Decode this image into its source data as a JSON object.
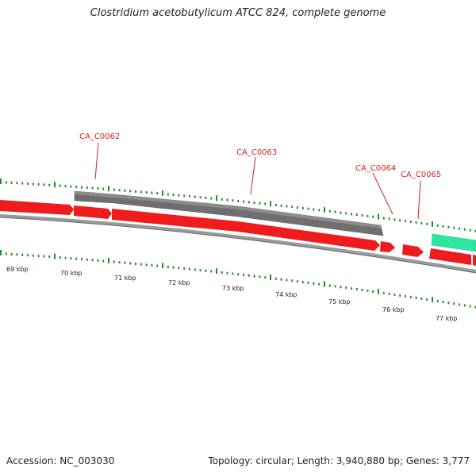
{
  "header": {
    "title": "Clostridium acetobutylicum ATCC 824, complete genome"
  },
  "footer": {
    "accession": "Accession: NC_003030",
    "topology": "Topology: circular; Length: 3,940,880 bp; Genes: 3,777"
  },
  "colors": {
    "gene_forward": "#ee1c1c",
    "gene_grey": "#6f6f6f",
    "gene_teal": "#2ee6a0",
    "tick": "#2a8a2a",
    "label": "#d42020",
    "backbone": "#9a9a9a"
  },
  "scale_labels": [
    "70 kbp",
    "71 kbp",
    "72 kbp",
    "73 kbp",
    "74 kbp",
    "75 kbp",
    "76 kbp",
    "77 kbp"
  ],
  "partial_scale_label": "69 kbp",
  "gene_labels": [
    "CA_C0062",
    "CA_C0063",
    "CA_C0064",
    "CA_C0065"
  ]
}
